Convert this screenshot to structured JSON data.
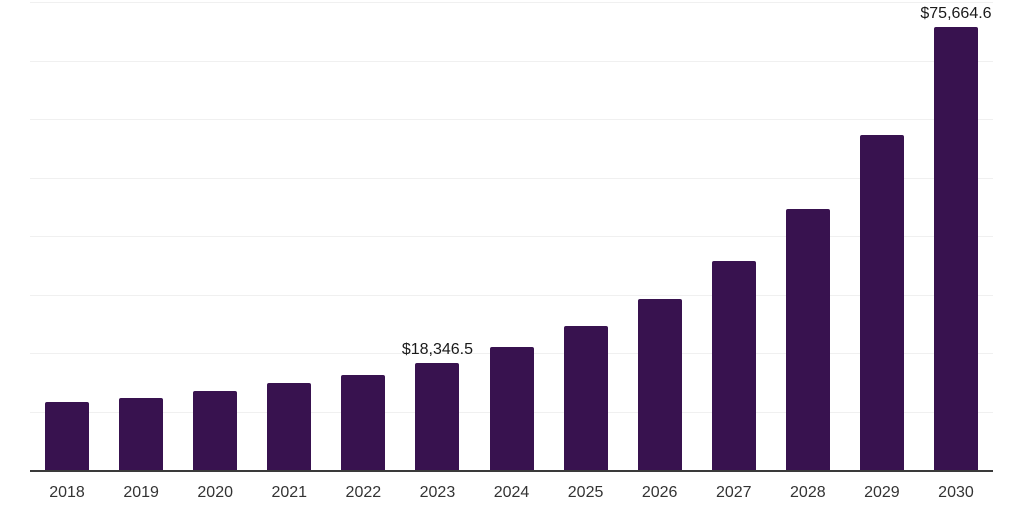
{
  "chart_data": {
    "type": "bar",
    "title": "",
    "xlabel": "",
    "ylabel": "",
    "categories": [
      "2018",
      "2019",
      "2020",
      "2021",
      "2022",
      "2023",
      "2024",
      "2025",
      "2026",
      "2027",
      "2028",
      "2029",
      "2030"
    ],
    "values": [
      11600,
      12300,
      13500,
      14900,
      16200,
      18346.5,
      21000,
      24700,
      29300,
      35700,
      44700,
      57300,
      75664.6
    ],
    "point_labels": [
      "",
      "",
      "",
      "",
      "",
      "$18,346.5",
      "",
      "",
      "",
      "",
      "",
      "",
      "$75,664.6"
    ],
    "ylim": [
      0,
      80000
    ],
    "y_gridline_step": 10000,
    "grid": "horizontal-only",
    "legend": "none",
    "y_axis_tick_labels": "none",
    "colors": {
      "bar": "#38124F",
      "gridline": "#F0F0F0",
      "axis_line": "#3A3A3A",
      "tick_label": "#333333",
      "data_label": "#1A1A1A",
      "background": "#FFFFFF"
    }
  }
}
